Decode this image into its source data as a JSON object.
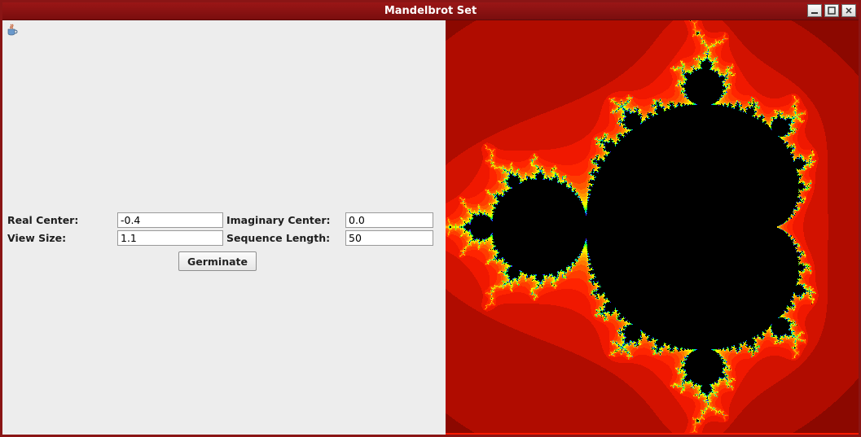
{
  "window": {
    "title": "Mandelbrot Set"
  },
  "form": {
    "real_center_label": "Real Center:",
    "real_center_value": "-0.4",
    "imaginary_center_label": "Imaginary Center:",
    "imaginary_center_value": "0.0",
    "view_size_label": "View Size:",
    "view_size_value": "1.1",
    "sequence_length_label": "Sequence Length:",
    "sequence_length_value": "50",
    "germinate_label": "Germinate"
  },
  "mandelbrot": {
    "type": "fractal",
    "real_center": -0.4,
    "imag_center": 0.0,
    "view_size": 1.1,
    "max_iterations": 50,
    "canvas_size": 507,
    "inside_color": "#000000",
    "palette": [
      "#8c0800",
      "#b00c00",
      "#d21200",
      "#f01800",
      "#ff2400",
      "#ff3c00",
      "#ff5800",
      "#ff7800",
      "#ff9800",
      "#ffb800",
      "#ffd800",
      "#fff600",
      "#e8ff00",
      "#b8ff00",
      "#78ff00",
      "#30ff10",
      "#00f050",
      "#00e090",
      "#00d0c8",
      "#00b0ff",
      "#0080ff",
      "#1050ff",
      "#3020ff",
      "#5800ff"
    ],
    "background_color": "#ff1a00"
  },
  "titlebar_buttons": {
    "minimize": "minimize",
    "maximize": "maximize",
    "close": "close"
  },
  "colors": {
    "frame": "#8a1515",
    "titlebar_from": "#9a1616",
    "titlebar_to": "#7a0e0e",
    "panel_bg": "#ededed",
    "field_border": "#9a9a9a",
    "button_border": "#8f8f8f",
    "text": "#1e1e1e"
  }
}
